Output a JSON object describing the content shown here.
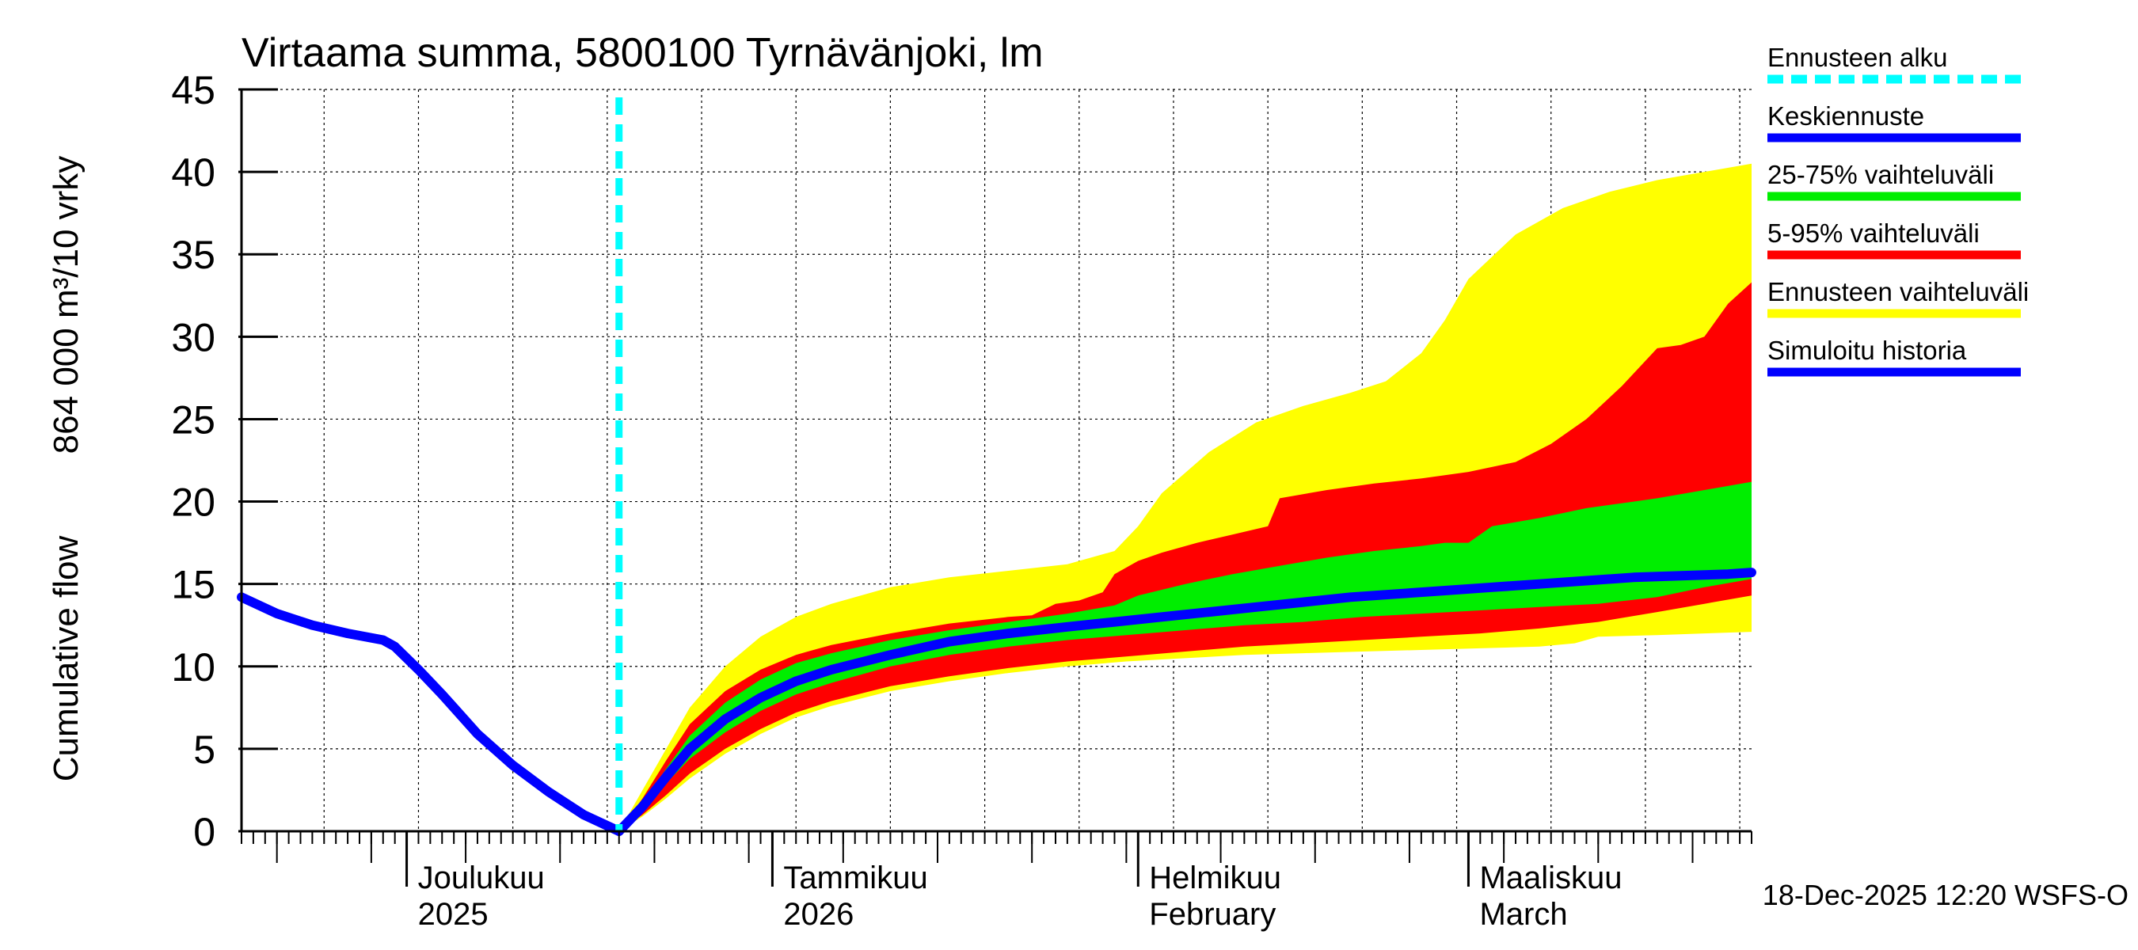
{
  "chart_data": {
    "type": "area",
    "title": "Virtaama summa, 5800100 Tyrnävänjoki, lm",
    "ylabel_lines": [
      "Cumulative flow",
      "864 000 m³/10 vrky"
    ],
    "ylim": [
      0,
      45
    ],
    "y_ticks": [
      0,
      5,
      10,
      15,
      20,
      25,
      30,
      35,
      40,
      45
    ],
    "x_domain_days": [
      0,
      128
    ],
    "forecast_start_day": 32,
    "month_labels": [
      {
        "day": 14,
        "line1": "Joulukuu",
        "line2": "2025"
      },
      {
        "day": 47,
        "line1": "Tammikuu",
        "line2": "2026"
      },
      {
        "day": 80,
        "line1": "Helmikuu",
        "line2": "February"
      },
      {
        "day": 109,
        "line1": "Maaliskuu",
        "line2": "March"
      }
    ],
    "month_boundaries": [
      14,
      45,
      76,
      104
    ],
    "legend": [
      {
        "label": "Ennusteen alku",
        "color": "#00ffff",
        "style": "dashed"
      },
      {
        "label": "Keskiennuste",
        "color": "#0000ff",
        "style": "solid"
      },
      {
        "label": "25-75% vaihteluväli",
        "color": "#00ee00",
        "style": "solid"
      },
      {
        "label": "5-95% vaihteluväli",
        "color": "#ff0000",
        "style": "solid"
      },
      {
        "label": "Ennusteen vaihteluväli",
        "color": "#ffff00",
        "style": "solid"
      },
      {
        "label": "Simuloitu historia",
        "color": "#0000ff",
        "style": "solid"
      }
    ],
    "colors": {
      "yellow": "#ffff00",
      "red": "#ff0000",
      "green": "#00ee00",
      "blue": "#0000ff",
      "cyan": "#00ffff"
    },
    "history": {
      "x": [
        0,
        3,
        6,
        9,
        12,
        13,
        15,
        17,
        20,
        23,
        26,
        29,
        32
      ],
      "y": [
        14.2,
        13.2,
        12.5,
        12.0,
        11.6,
        11.2,
        9.8,
        8.3,
        5.9,
        4.0,
        2.4,
        1.0,
        0.0
      ]
    },
    "series": [
      {
        "name": "Ennusteen vaihteluväli (max)",
        "x": [
          32,
          34,
          36,
          38,
          41,
          44,
          47,
          50,
          55,
          60,
          65,
          70,
          74,
          76,
          78,
          82,
          86,
          90,
          94,
          97,
          100,
          102,
          104,
          108,
          112,
          116,
          120,
          124,
          128
        ],
        "y": [
          0,
          2.5,
          5.0,
          7.5,
          10.0,
          11.8,
          13.0,
          13.8,
          14.8,
          15.4,
          15.8,
          16.2,
          17.0,
          18.5,
          20.5,
          23.0,
          24.8,
          25.8,
          26.6,
          27.3,
          29.0,
          31.0,
          33.5,
          36.2,
          37.8,
          38.8,
          39.5,
          40.0,
          40.5
        ]
      },
      {
        "name": "5-95% (upper)",
        "x": [
          32,
          34,
          36,
          38,
          41,
          44,
          47,
          50,
          55,
          60,
          65,
          67,
          69,
          71,
          73,
          74,
          76,
          78,
          81,
          84,
          87,
          88,
          92,
          96,
          100,
          104,
          108,
          111,
          114,
          117,
          120,
          122,
          124,
          126,
          128
        ],
        "y": [
          0,
          2.0,
          4.3,
          6.5,
          8.5,
          9.8,
          10.7,
          11.3,
          12.0,
          12.6,
          13.0,
          13.1,
          13.8,
          14.0,
          14.5,
          15.6,
          16.4,
          16.9,
          17.5,
          18.0,
          18.5,
          20.2,
          20.7,
          21.1,
          21.4,
          21.8,
          22.4,
          23.5,
          25.0,
          27.0,
          29.3,
          29.5,
          30.0,
          32.0,
          33.3
        ]
      },
      {
        "name": "25-75% (upper)",
        "x": [
          32,
          34,
          36,
          38,
          41,
          44,
          47,
          50,
          55,
          60,
          65,
          70,
          74,
          76,
          80,
          84,
          88,
          92,
          96,
          100,
          102,
          104,
          106,
          110,
          114,
          118,
          120,
          124,
          128
        ],
        "y": [
          0,
          1.7,
          3.8,
          5.8,
          7.8,
          9.2,
          10.2,
          10.8,
          11.6,
          12.2,
          12.7,
          13.2,
          13.7,
          14.3,
          15.0,
          15.6,
          16.1,
          16.6,
          17.0,
          17.3,
          17.5,
          17.5,
          18.5,
          19.0,
          19.6,
          20.0,
          20.2,
          20.7,
          21.2
        ]
      },
      {
        "name": "Keskiennuste",
        "x": [
          32,
          34,
          36,
          38,
          41,
          44,
          47,
          50,
          55,
          60,
          65,
          70,
          74,
          78,
          82,
          86,
          90,
          94,
          98,
          102,
          106,
          110,
          114,
          118,
          122,
          126,
          128
        ],
        "y": [
          0,
          1.5,
          3.3,
          5.0,
          6.8,
          8.1,
          9.1,
          9.8,
          10.7,
          11.5,
          12.0,
          12.4,
          12.7,
          13.0,
          13.3,
          13.6,
          13.9,
          14.2,
          14.4,
          14.6,
          14.8,
          15.0,
          15.2,
          15.4,
          15.5,
          15.6,
          15.7
        ]
      },
      {
        "name": "25-75% (lower)",
        "x": [
          32,
          34,
          36,
          38,
          41,
          44,
          47,
          50,
          55,
          60,
          65,
          70,
          75,
          80,
          85,
          90,
          95,
          100,
          105,
          110,
          115,
          120,
          124,
          128
        ],
        "y": [
          0,
          1.4,
          2.9,
          4.4,
          6.0,
          7.3,
          8.3,
          9.0,
          10.0,
          10.7,
          11.2,
          11.6,
          11.9,
          12.2,
          12.5,
          12.7,
          13.0,
          13.2,
          13.4,
          13.6,
          13.8,
          14.2,
          14.8,
          15.3
        ]
      },
      {
        "name": "5-95% (lower)",
        "x": [
          32,
          34,
          36,
          38,
          41,
          44,
          47,
          50,
          55,
          60,
          65,
          70,
          75,
          80,
          85,
          90,
          95,
          100,
          105,
          110,
          115,
          120,
          124,
          128
        ],
        "y": [
          0,
          1.0,
          2.2,
          3.5,
          5.0,
          6.2,
          7.2,
          7.9,
          8.8,
          9.4,
          9.9,
          10.3,
          10.6,
          10.9,
          11.2,
          11.4,
          11.6,
          11.8,
          12.0,
          12.3,
          12.7,
          13.3,
          13.8,
          14.3
        ]
      },
      {
        "name": "Ennusteen vaihteluväli (min)",
        "x": [
          32,
          34,
          36,
          38,
          41,
          44,
          47,
          50,
          55,
          60,
          65,
          70,
          75,
          80,
          85,
          90,
          95,
          100,
          105,
          110,
          113,
          115,
          120,
          124,
          128
        ],
        "y": [
          0,
          0.9,
          2.0,
          3.2,
          4.7,
          5.9,
          6.9,
          7.6,
          8.5,
          9.1,
          9.6,
          10.0,
          10.3,
          10.5,
          10.7,
          10.8,
          10.9,
          11.0,
          11.1,
          11.2,
          11.4,
          11.8,
          11.9,
          12.0,
          12.1
        ]
      }
    ]
  },
  "footer": {
    "timestamp": "18-Dec-2025 12:20 WSFS-O"
  }
}
